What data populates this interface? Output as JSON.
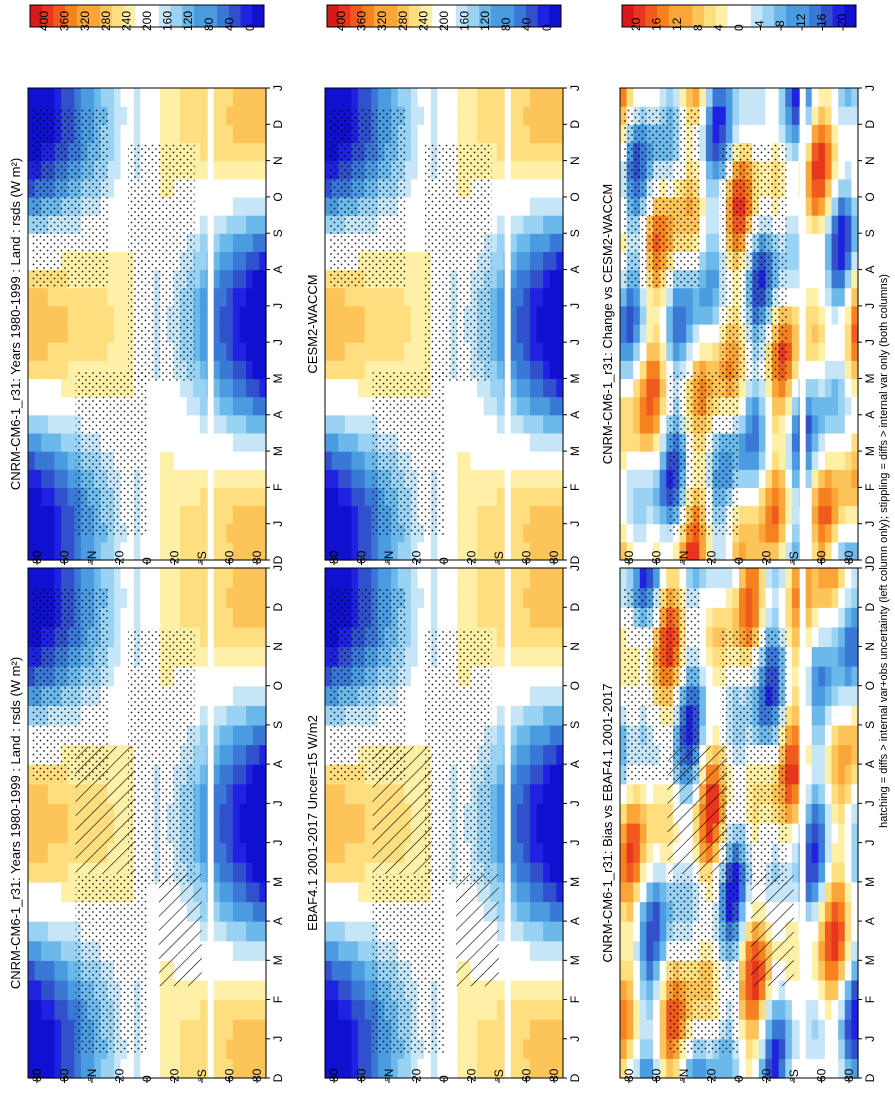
{
  "figure": {
    "footnote": "hatching = diffs > internal var+obs uncertainty (left column only); stippling = diffs > internal var only (both columns)"
  },
  "chart_data": [
    {
      "type": "heatmap",
      "title": "CNRM-CM6-1_r31: Years 1980-1999 : Land : rsds (W m²)",
      "months": [
        "D",
        "J",
        "F",
        "M",
        "A",
        "M",
        "J",
        "J",
        "A",
        "S",
        "O",
        "N",
        "D",
        "J"
      ],
      "lat_ticks": [
        "80",
        "60",
        "°N",
        "20",
        "0",
        "20",
        "°S",
        "60",
        "80"
      ],
      "colorbar": {
        "labels": [
          "400",
          "360",
          "320",
          "280",
          "240",
          "200",
          "160",
          "120",
          "80",
          "40",
          "0"
        ],
        "range": [
          0,
          400
        ],
        "kind": "abs"
      },
      "hatching": true,
      "stippling": true
    },
    {
      "type": "heatmap",
      "title": "EBAF4.1 2001-2017 Uncer=15 W/m2",
      "months": [
        "D",
        "J",
        "F",
        "M",
        "A",
        "M",
        "J",
        "J",
        "A",
        "S",
        "O",
        "N",
        "D",
        "J"
      ],
      "lat_ticks": [
        "80",
        "60",
        "°N",
        "20",
        "0",
        "20",
        "°S",
        "60",
        "80"
      ],
      "colorbar": {
        "labels": [
          "400",
          "360",
          "320",
          "280",
          "240",
          "200",
          "160",
          "120",
          "80",
          "40",
          "0"
        ],
        "range": [
          0,
          400
        ],
        "kind": "abs"
      },
      "hatching": true,
      "stippling": true
    },
    {
      "type": "heatmap",
      "title": "CNRM-CM6-1_r31: Bias vs EBAF4.1 2001-2017",
      "months": [
        "D",
        "J",
        "F",
        "M",
        "A",
        "M",
        "J",
        "J",
        "A",
        "S",
        "O",
        "N",
        "D",
        "J"
      ],
      "lat_ticks": [
        "80",
        "60",
        "°N",
        "20",
        "0",
        "20",
        "°S",
        "60",
        "80"
      ],
      "colorbar": {
        "labels": [
          "20",
          "16",
          "12",
          "8",
          "4",
          "0",
          "-4",
          "-8",
          "-12",
          "-16",
          "-20"
        ],
        "range": [
          -20,
          20
        ],
        "kind": "diff"
      },
      "hatching": true,
      "stippling": true
    },
    {
      "type": "heatmap",
      "title": "CNRM-CM6-1_r31: Years 1980-1999 : Land : rsds (W m²)",
      "months": [
        "D",
        "J",
        "F",
        "M",
        "A",
        "M",
        "J",
        "J",
        "A",
        "S",
        "O",
        "N",
        "D",
        "J"
      ],
      "lat_ticks": [
        "80",
        "60",
        "°N",
        "20",
        "0",
        "20",
        "°S",
        "60",
        "80"
      ],
      "colorbar": {
        "labels": [
          "400",
          "360",
          "320",
          "280",
          "240",
          "200",
          "160",
          "120",
          "80",
          "40",
          "0"
        ],
        "range": [
          0,
          400
        ],
        "kind": "abs"
      },
      "hatching": false,
      "stippling": true
    },
    {
      "type": "heatmap",
      "title": "CESM2-WACCM",
      "months": [
        "D",
        "J",
        "F",
        "M",
        "A",
        "M",
        "J",
        "J",
        "A",
        "S",
        "O",
        "N",
        "D",
        "J"
      ],
      "lat_ticks": [
        "80",
        "60",
        "°N",
        "20",
        "0",
        "20",
        "°S",
        "60",
        "80"
      ],
      "colorbar": {
        "labels": [
          "400",
          "360",
          "320",
          "280",
          "240",
          "200",
          "160",
          "120",
          "80",
          "40",
          "0"
        ],
        "range": [
          0,
          400
        ],
        "kind": "abs"
      },
      "hatching": false,
      "stippling": true
    },
    {
      "type": "heatmap",
      "title": "CNRM-CM6-1_r31: Change vs CESM2-WACCM",
      "months": [
        "D",
        "J",
        "F",
        "M",
        "A",
        "M",
        "J",
        "J",
        "A",
        "S",
        "O",
        "N",
        "D",
        "J"
      ],
      "lat_ticks": [
        "80",
        "60",
        "°N",
        "20",
        "0",
        "20",
        "°S",
        "60",
        "80"
      ],
      "colorbar": {
        "labels": [
          "20",
          "16",
          "12",
          "8",
          "4",
          "0",
          "-4",
          "-8",
          "-12",
          "-16",
          "-20"
        ],
        "range": [
          -20,
          20
        ],
        "kind": "diff"
      },
      "hatching": false,
      "stippling": true
    }
  ],
  "colors": {
    "scale": [
      "#d7191c",
      "#e8351e",
      "#f05a1e",
      "#f6821f",
      "#fba538",
      "#fdc45a",
      "#fede7e",
      "#fff0a8",
      "#ffffff",
      "#ffffff",
      "#c6e6f8",
      "#99d2f2",
      "#6bb8ea",
      "#4a9be0",
      "#3a78d6",
      "#3050cc",
      "#1f22e0",
      "#1010d0"
    ]
  }
}
